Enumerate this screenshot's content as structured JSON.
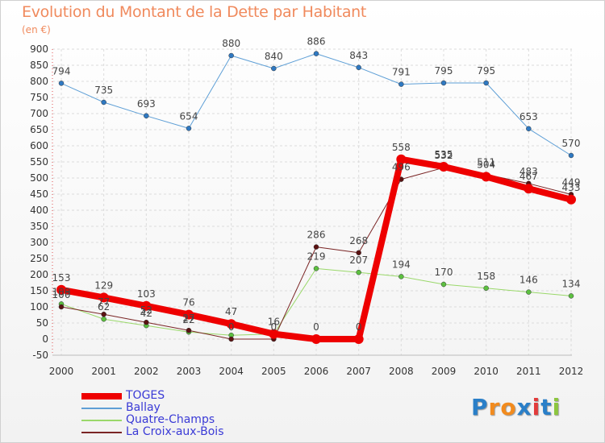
{
  "header": {
    "title": "Evolution du Montant de la Dette par Habitant",
    "unit": "(en €)"
  },
  "logo": {
    "text": "Proxiti"
  },
  "chart_data": {
    "type": "line",
    "title": "Evolution du Montant de la Dette par Habitant",
    "subtitle": "(en €)",
    "xlabel": "",
    "ylabel": "",
    "x": [
      "2000",
      "2001",
      "2002",
      "2003",
      "2004",
      "2005",
      "2006",
      "2007",
      "2008",
      "2009",
      "2010",
      "2011",
      "2012"
    ],
    "ylim": [
      -50,
      900
    ],
    "yticks": [
      -50,
      0,
      50,
      100,
      150,
      200,
      250,
      300,
      350,
      400,
      450,
      500,
      550,
      600,
      650,
      700,
      750,
      800,
      850,
      900
    ],
    "grid": true,
    "legend_position": "bottom-left",
    "series": [
      {
        "name": "Ballay",
        "color": "#5e9fd6",
        "point_color": "#2f79c2",
        "width": 1,
        "values": [
          794,
          735,
          693,
          654,
          880,
          840,
          886,
          843,
          791,
          795,
          795,
          653,
          570
        ],
        "labels": [
          "794",
          "735",
          "693",
          "654",
          "880",
          "840",
          "886",
          "843",
          "791",
          "795",
          "795",
          "653",
          "570"
        ]
      },
      {
        "name": "Quatre-Champs",
        "color": "#9ad86a",
        "point_color": "#5cc040",
        "width": 1,
        "values": [
          109,
          62,
          42,
          22,
          12,
          16,
          219,
          207,
          194,
          170,
          158,
          146,
          134
        ],
        "labels": [
          "109",
          "62",
          "42",
          "22",
          "",
          "",
          "219",
          "207",
          "194",
          "170",
          "158",
          "146",
          "134"
        ]
      },
      {
        "name": "La Croix-aux-Bois",
        "color": "#7a2525",
        "point_color": "#5a1212",
        "width": 1,
        "values": [
          100,
          77,
          52,
          27,
          0,
          0,
          286,
          268,
          496,
          532,
          511,
          483,
          449
        ],
        "labels": [
          "100",
          "77",
          "52",
          "27",
          "0",
          "0",
          "286",
          "268",
          "496",
          "532",
          "511",
          "483",
          "449"
        ]
      },
      {
        "name": "TOGES",
        "color": "#ee0000",
        "point_color": "#ee0000",
        "width": 8,
        "values": [
          153,
          129,
          103,
          76,
          47,
          16,
          0,
          0,
          558,
          535,
          504,
          467,
          433
        ],
        "labels": [
          "153",
          "129",
          "103",
          "76",
          "47",
          "16",
          "0",
          "0",
          "558",
          "535",
          "504",
          "467",
          "433"
        ]
      }
    ],
    "legend_order": [
      "TOGES",
      "Ballay",
      "Quatre-Champs",
      "La Croix-aux-Bois"
    ]
  }
}
